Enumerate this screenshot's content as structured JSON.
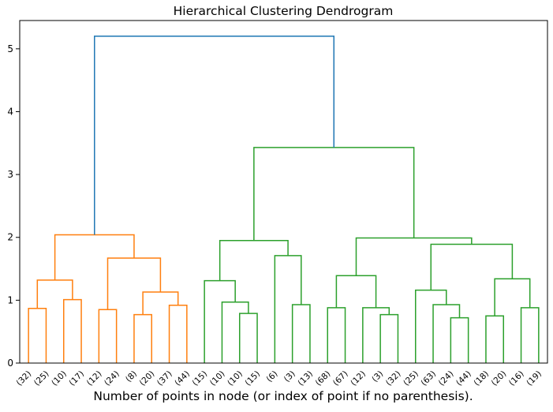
{
  "chart_data": {
    "type": "dendrogram",
    "title": "Hierarchical Clustering Dendrogram",
    "xlabel": "Number of points in node (or index of point if no parenthesis).",
    "ylabel": "",
    "ylim": [
      0,
      5.45
    ],
    "yticks": [
      0,
      1,
      2,
      3,
      4,
      5
    ],
    "grid": false,
    "colors": {
      "orange": "#ff7f0e",
      "green": "#2ca02c",
      "blue": "#1f77b4"
    },
    "leaves": [
      "(32)",
      "(25)",
      "(10)",
      "(17)",
      "(12)",
      "(24)",
      "(8)",
      "(20)",
      "(37)",
      "(44)",
      "(15)",
      "(10)",
      "(10)",
      "(15)",
      "(6)",
      "(3)",
      "(13)",
      "(68)",
      "(67)",
      "(12)",
      "(3)",
      "(32)",
      "(25)",
      "(63)",
      "(24)",
      "(44)",
      "(18)",
      "(20)",
      "(16)",
      "(19)"
    ],
    "merges": [
      {
        "left": "L0",
        "right": "L1",
        "height": 0.87,
        "color": "orange"
      },
      {
        "left": "L2",
        "right": "L3",
        "height": 1.01,
        "color": "orange"
      },
      {
        "left": "L4",
        "right": "L5",
        "height": 0.85,
        "color": "orange"
      },
      {
        "left": "L6",
        "right": "L7",
        "height": 0.77,
        "color": "orange"
      },
      {
        "left": "L8",
        "right": "L9",
        "height": 0.92,
        "color": "orange"
      },
      {
        "left": "M0",
        "right": "M1",
        "height": 1.32,
        "color": "orange"
      },
      {
        "left": "M3",
        "right": "M4",
        "height": 1.13,
        "color": "orange"
      },
      {
        "left": "M2",
        "right": "M6",
        "height": 1.67,
        "color": "orange"
      },
      {
        "left": "M5",
        "right": "M7",
        "height": 2.04,
        "color": "orange"
      },
      {
        "left": "L12",
        "right": "L13",
        "height": 0.79,
        "color": "green"
      },
      {
        "left": "L11",
        "right": "M9",
        "height": 0.97,
        "color": "green"
      },
      {
        "left": "L10",
        "right": "M10",
        "height": 1.31,
        "color": "green"
      },
      {
        "left": "L15",
        "right": "L16",
        "height": 0.93,
        "color": "green"
      },
      {
        "left": "L14",
        "right": "M12",
        "height": 1.71,
        "color": "green"
      },
      {
        "left": "M11",
        "right": "M13",
        "height": 1.95,
        "color": "green"
      },
      {
        "left": "L17",
        "right": "L18",
        "height": 0.88,
        "color": "green"
      },
      {
        "left": "L20",
        "right": "L21",
        "height": 0.77,
        "color": "green"
      },
      {
        "left": "L19",
        "right": "M16",
        "height": 0.88,
        "color": "green"
      },
      {
        "left": "M15",
        "right": "M17",
        "height": 1.39,
        "color": "green"
      },
      {
        "left": "L24",
        "right": "L25",
        "height": 0.72,
        "color": "green"
      },
      {
        "left": "L23",
        "right": "M19",
        "height": 0.93,
        "color": "green"
      },
      {
        "left": "L22",
        "right": "M20",
        "height": 1.16,
        "color": "green"
      },
      {
        "left": "L26",
        "right": "L27",
        "height": 0.75,
        "color": "green"
      },
      {
        "left": "L28",
        "right": "L29",
        "height": 0.88,
        "color": "green"
      },
      {
        "left": "M22",
        "right": "M23",
        "height": 1.34,
        "color": "green"
      },
      {
        "left": "M21",
        "right": "M24",
        "height": 1.89,
        "color": "green"
      },
      {
        "left": "M18",
        "right": "M25",
        "height": 1.99,
        "color": "green"
      },
      {
        "left": "M14",
        "right": "M26",
        "height": 3.43,
        "color": "green"
      },
      {
        "left": "M8",
        "right": "M27",
        "height": 5.2,
        "color": "blue"
      }
    ]
  }
}
